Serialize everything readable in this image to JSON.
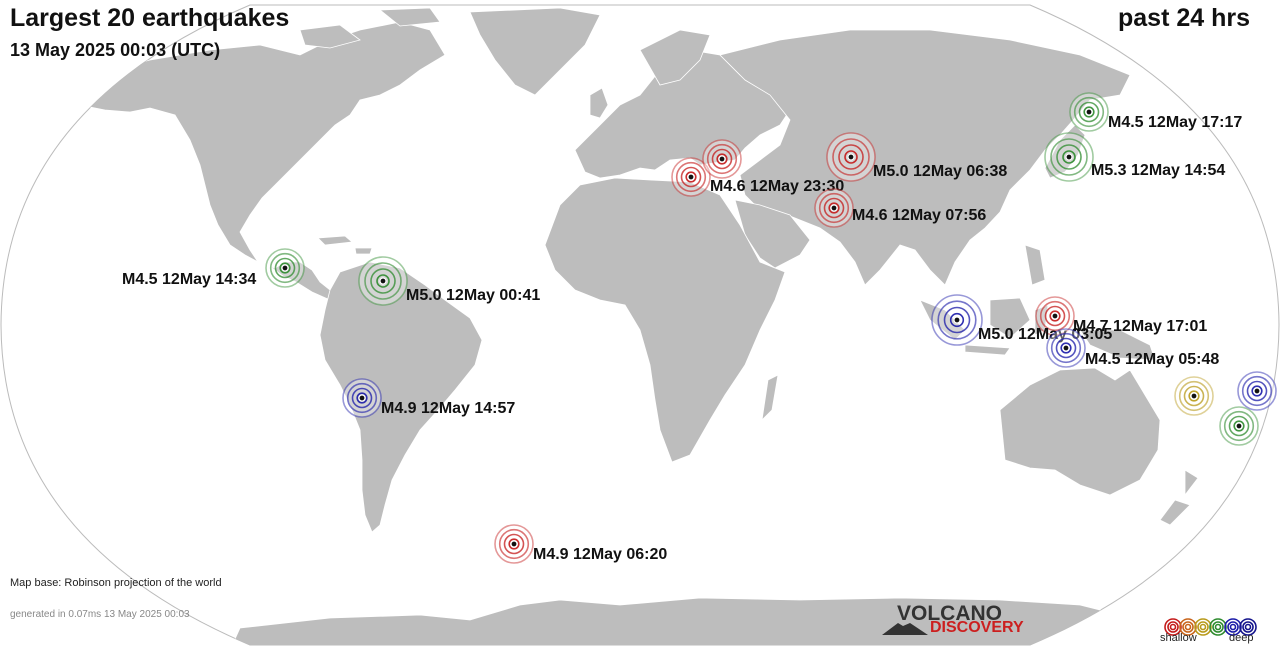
{
  "header": {
    "title": "Largest 20 earthquakes",
    "subtitle": "13 May 2025 00:03 (UTC)",
    "period": "past 24 hrs"
  },
  "footer": {
    "map_base": "Map base: Robinson projection of the world",
    "generated": "generated in 0.07ms 13 May 2025 00:03"
  },
  "logo": {
    "line1": "VOLCANO",
    "line2": "DISCOVERY"
  },
  "legend": {
    "shallow": "shallow",
    "deep": "deep",
    "colors": [
      "#c41a1a",
      "#c8641a",
      "#b89a1a",
      "#2e8b2e",
      "#1a1aa8",
      "#14148c"
    ]
  },
  "colors": {
    "ocean": "#ffffff",
    "land": "#bdbdbd",
    "border": "#ffffff",
    "outline": "#bbbbbb"
  },
  "earthquakes": [
    {
      "label": "M4.5 12May 17:17",
      "depth_color": "green"
    },
    {
      "label": "M5.3 12May 14:54",
      "depth_color": "green"
    },
    {
      "label": "M5.0 12May 06:38",
      "depth_color": "red"
    },
    {
      "label": "M4.6 12May 23:30",
      "depth_color": "red"
    },
    {
      "label": "",
      "depth_color": "red"
    },
    {
      "label": "M4.6 12May 07:56",
      "depth_color": "red"
    },
    {
      "label": "M4.5 12May 14:34",
      "depth_color": "green"
    },
    {
      "label": "M5.0 12May 00:41",
      "depth_color": "green"
    },
    {
      "label": "M4.7 12May 17:01",
      "depth_color": "red"
    },
    {
      "label": "M5.0 12May 03:05",
      "depth_color": "blue"
    },
    {
      "label": "M4.5 12May 05:48",
      "depth_color": "blue"
    },
    {
      "label": "M4.9 12May 14:57",
      "depth_color": "blue"
    },
    {
      "label": "",
      "depth_color": "yellow"
    },
    {
      "label": "",
      "depth_color": "blue"
    },
    {
      "label": "",
      "depth_color": "green"
    },
    {
      "label": "M4.9 12May 06:20",
      "depth_color": "red"
    }
  ]
}
